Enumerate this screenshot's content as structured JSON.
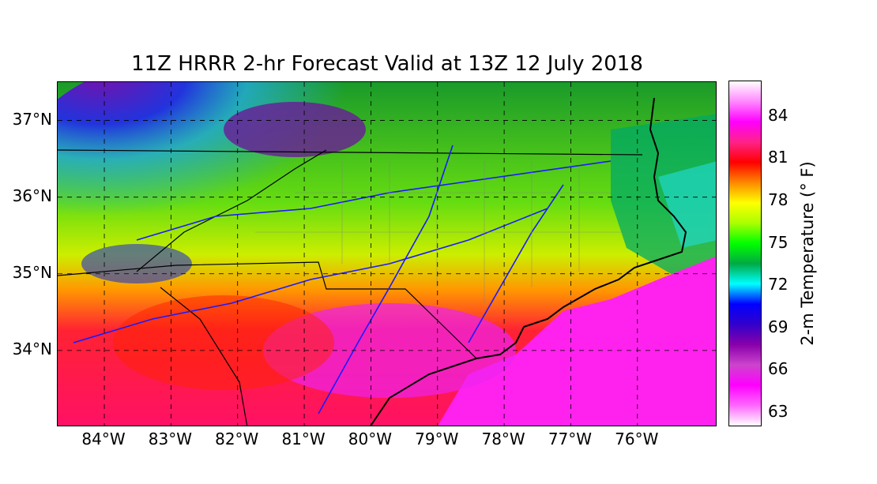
{
  "title": "11Z HRRR 2-hr Forecast Valid at 13Z 12 July 2018",
  "map": {
    "lat_labels": [
      "37°N",
      "36°N",
      "35°N",
      "34°N"
    ],
    "lon_labels": [
      "84°W",
      "83°W",
      "82°W",
      "81°W",
      "80°W",
      "79°W",
      "78°W",
      "77°W",
      "76°W"
    ],
    "lat_values": [
      37,
      36,
      35,
      34
    ],
    "lon_values": [
      -84,
      -83,
      -82,
      -81,
      -80,
      -79,
      -78,
      -77,
      -76
    ],
    "lat_range": [
      33.0,
      37.5
    ],
    "lon_range": [
      -84.7,
      -74.8
    ],
    "gridlines": "dashed",
    "colors": {
      "ocean_warm": "#ff22dd",
      "coast": "#000000",
      "state_border": "#000000",
      "county_border": "#808080",
      "roads": "#1a1aff"
    }
  },
  "colorbar": {
    "label": "2-m Temperature (° F)",
    "ticks": [
      "84",
      "81",
      "78",
      "75",
      "72",
      "69",
      "66",
      "63"
    ],
    "tick_values": [
      84,
      81,
      78,
      75,
      72,
      69,
      66,
      63
    ],
    "range": [
      62,
      86.5
    ],
    "stops": [
      "#ffffff",
      "#ff66ff",
      "#ff00ff",
      "#cc44cc",
      "#8800aa",
      "#3300cc",
      "#0000ff",
      "#00ffff",
      "#00aa44",
      "#00ff00",
      "#aaff00",
      "#ffff00",
      "#ff8800",
      "#ff0000",
      "#ff2288",
      "#ff00ff",
      "#ff88ff",
      "#ffffff"
    ]
  }
}
